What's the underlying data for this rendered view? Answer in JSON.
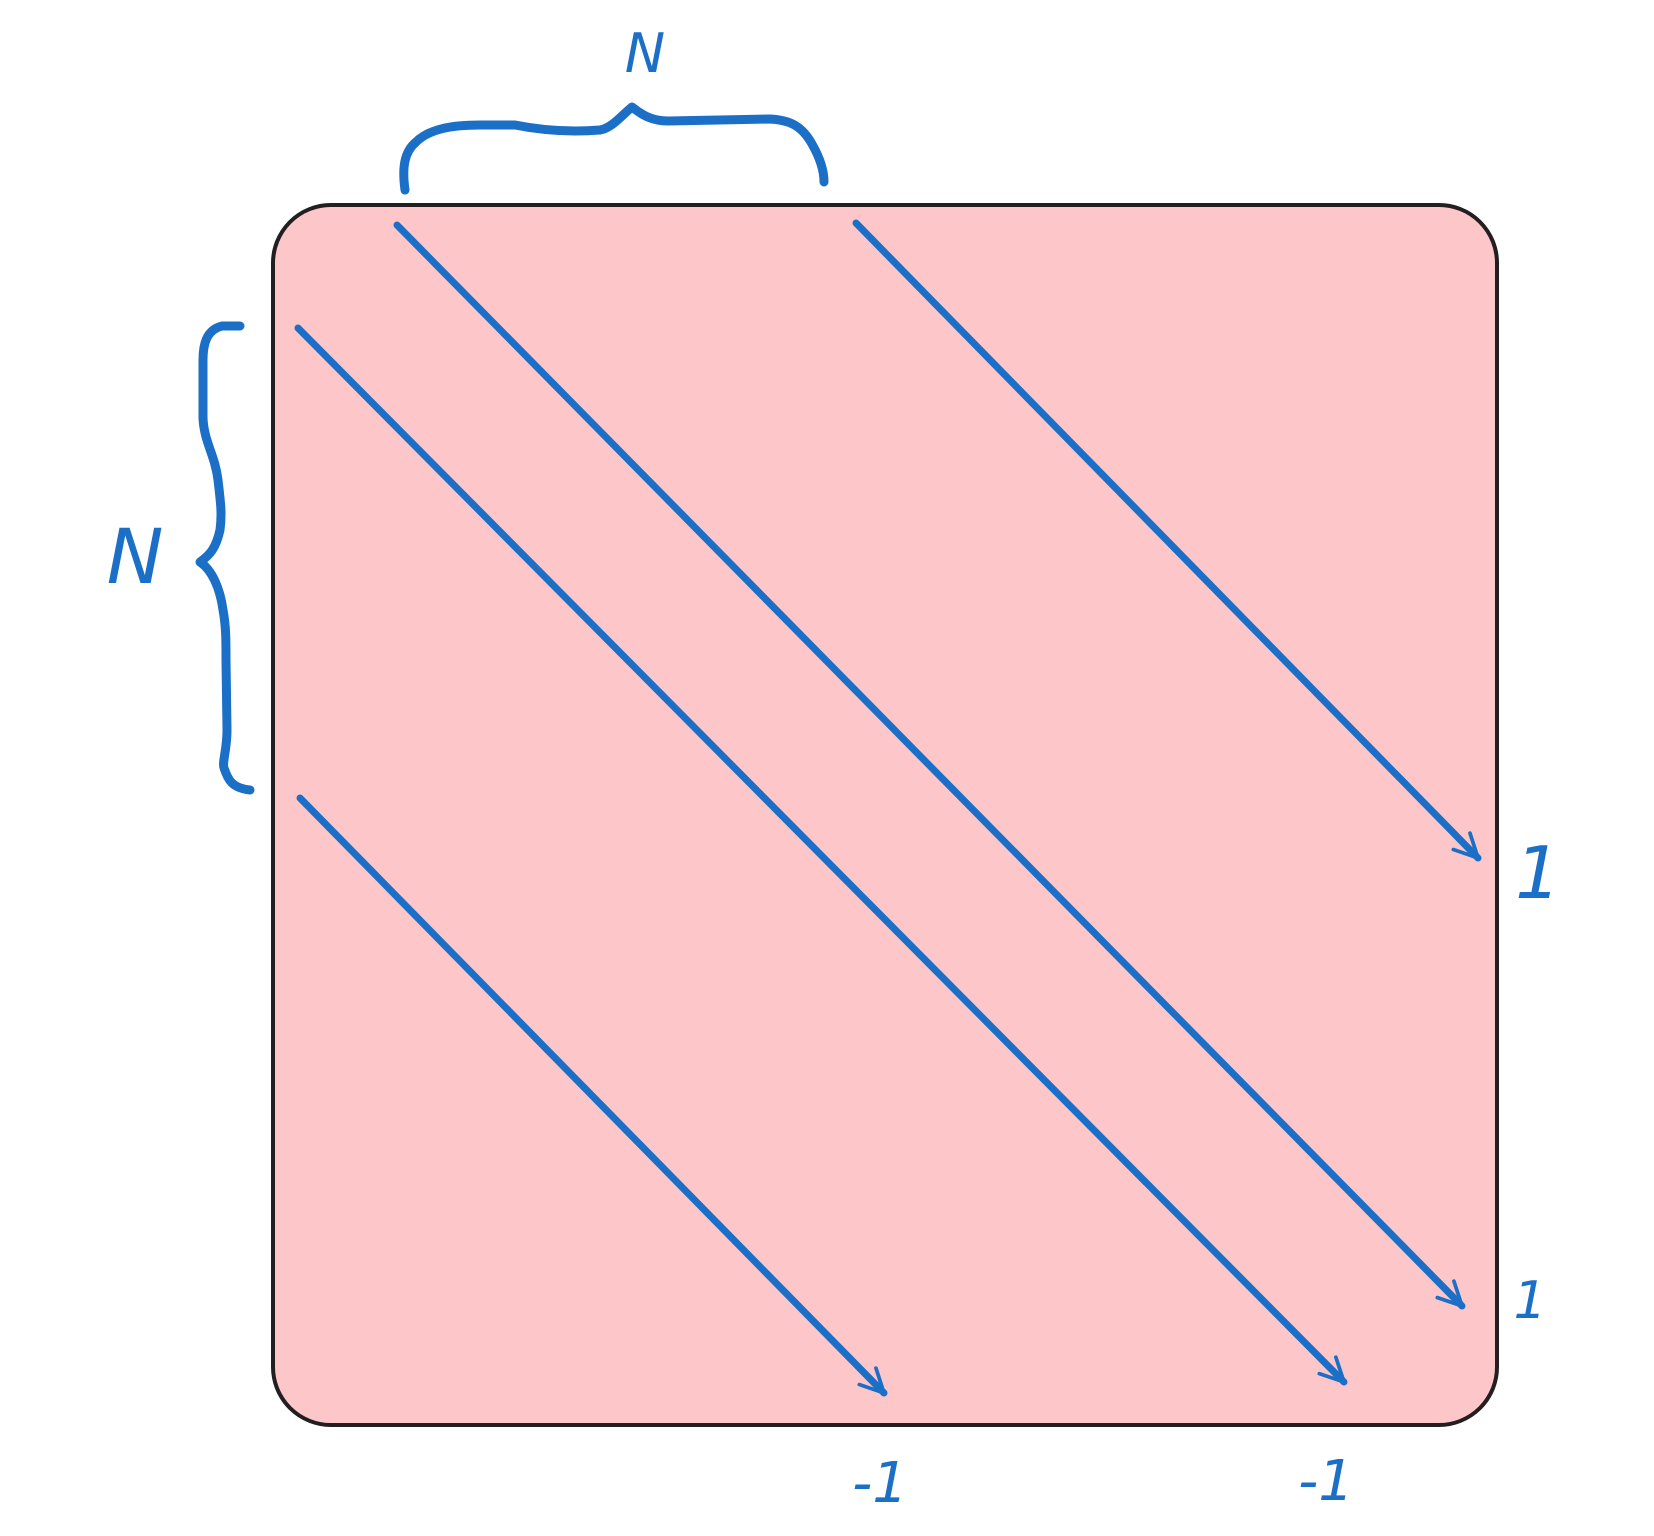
{
  "diagram": {
    "matrix_fill": "#fdc7ca",
    "matrix_border": "#231f20",
    "ink_color": "#1b6fc6",
    "brace_top_label": "N",
    "brace_left_label": "N",
    "diagonals": [
      {
        "id": "upper-far",
        "value": "1"
      },
      {
        "id": "upper-near",
        "value": "1"
      },
      {
        "id": "lower-near",
        "value": "-1"
      },
      {
        "id": "lower-far",
        "value": "-1"
      }
    ]
  }
}
